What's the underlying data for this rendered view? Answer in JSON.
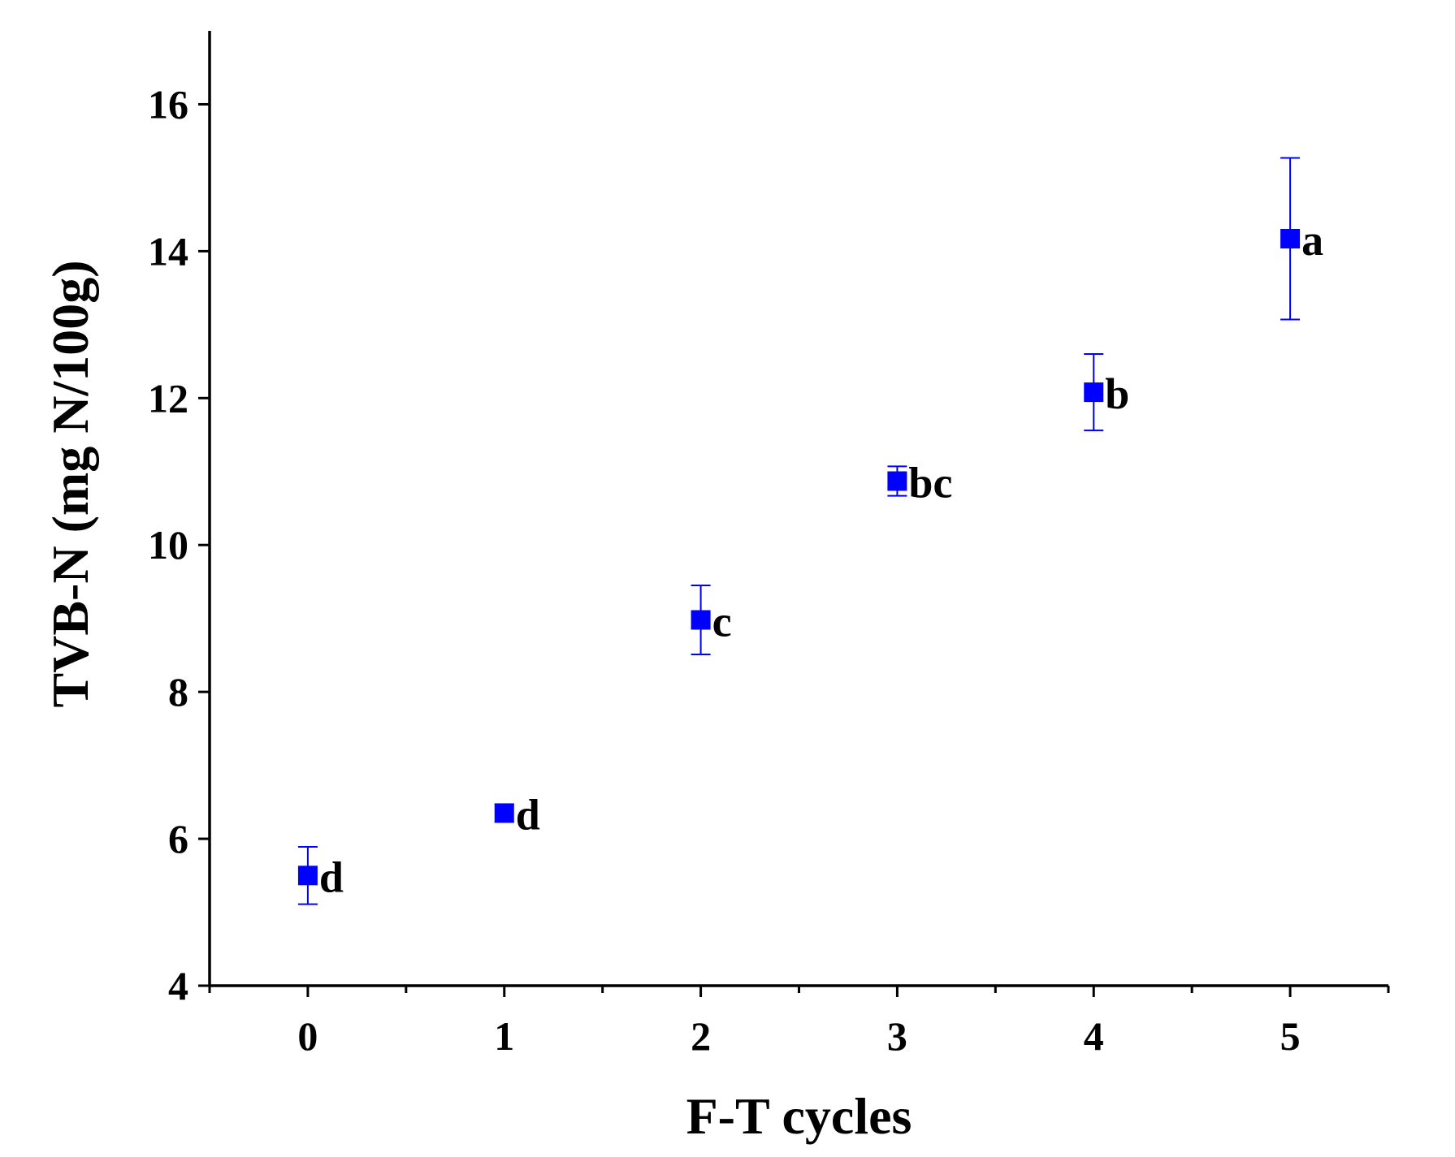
{
  "chart_data": {
    "type": "scatter",
    "xlabel": "F-T cycles",
    "ylabel": "TVB-N (mg N/100g)",
    "xlim": [
      -0.5,
      5.5
    ],
    "ylim": [
      4,
      17
    ],
    "x_ticks": [
      0,
      1,
      2,
      3,
      4,
      5
    ],
    "y_ticks": [
      4,
      6,
      8,
      10,
      12,
      14,
      16
    ],
    "grid": false,
    "marker": "square",
    "color": "#0000ff",
    "series": [
      {
        "x": [
          0,
          1,
          2,
          3,
          4,
          5
        ],
        "y": [
          5.5,
          6.35,
          8.98,
          10.87,
          12.08,
          14.17
        ],
        "error": [
          0.39,
          0.12,
          0.47,
          0.2,
          0.52,
          1.1
        ],
        "labels": [
          "d",
          "d",
          "c",
          "bc",
          "b",
          "a"
        ]
      }
    ]
  }
}
